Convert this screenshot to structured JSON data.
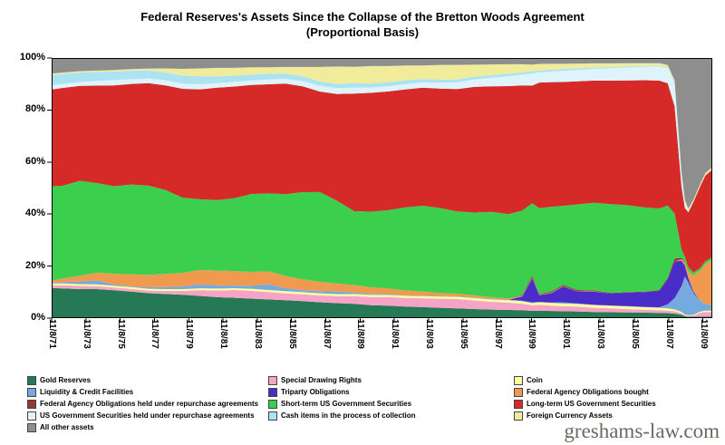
{
  "watermark": "greshams-law.com",
  "chart_data": {
    "type": "area",
    "stacked": true,
    "proportional": true,
    "title": "Federal Reserves's Assets Since the Collapse of the Bretton Woods Agreement (Proportional Basis)",
    "title_lines": [
      "Federal Reserves's Assets Since the Collapse of the Bretton Woods Agreement",
      "(Proportional Basis)"
    ],
    "xlabel": "",
    "ylabel": "",
    "grid": false,
    "ylim": [
      0,
      100
    ],
    "xlim": [
      1971.85,
      2010.4
    ],
    "y_ticks": [
      "0%",
      "20%",
      "40%",
      "60%",
      "80%",
      "100%"
    ],
    "y_tick_values": [
      0,
      20,
      40,
      60,
      80,
      100
    ],
    "x_tick_labels": [
      "11/8/71",
      "11/8/73",
      "11/8/75",
      "11/8/77",
      "11/8/79",
      "11/8/81",
      "11/8/83",
      "11/8/85",
      "11/8/87",
      "11/8/89",
      "11/8/91",
      "11/8/93",
      "11/8/95",
      "11/8/97",
      "11/8/99",
      "11/8/01",
      "11/8/03",
      "11/8/05",
      "11/8/07",
      "11/8/09"
    ],
    "x_tick_positions": [
      1971.85,
      1973.85,
      1975.85,
      1977.85,
      1979.85,
      1981.85,
      1983.85,
      1985.85,
      1987.85,
      1989.85,
      1991.85,
      1993.85,
      1995.85,
      1997.85,
      1999.85,
      2001.85,
      2003.85,
      2005.85,
      2007.85,
      2009.85
    ],
    "x": [
      1971.85,
      1972.5,
      1973.5,
      1974.5,
      1975.5,
      1976.5,
      1977.5,
      1978.5,
      1979.5,
      1980.5,
      1981.5,
      1982.5,
      1983.5,
      1984.5,
      1985.5,
      1986.5,
      1987.5,
      1988.5,
      1989.5,
      1990.5,
      1991.5,
      1992.5,
      1993.5,
      1994.5,
      1995.5,
      1996.5,
      1997.5,
      1998.5,
      1999.3,
      1999.9,
      2000.3,
      2001.0,
      2001.7,
      2002.5,
      2003.5,
      2004.5,
      2005.5,
      2006.5,
      2007.3,
      2007.8,
      2008.2,
      2008.6,
      2008.8,
      2009.0,
      2009.3,
      2009.7,
      2010.0,
      2010.4
    ],
    "series": [
      {
        "key": "gold_reserves",
        "label": "Gold Reserves",
        "color": "#257a55",
        "values": [
          11.5,
          11.2,
          11,
          11,
          10.5,
          10,
          9.5,
          9.2,
          9,
          8.5,
          8,
          7.8,
          7.5,
          7.2,
          6.8,
          6.4,
          6,
          5.6,
          5.2,
          4.8,
          4.6,
          4.3,
          4.1,
          3.9,
          3.7,
          3.4,
          3.2,
          3,
          2.9,
          2.7,
          2.8,
          2.7,
          2.6,
          2.5,
          2.3,
          2.2,
          2.1,
          2,
          1.9,
          1.8,
          1.6,
          1.2,
          0.7,
          0.5,
          0.5,
          0.5,
          0.5,
          0.5
        ]
      },
      {
        "key": "special_drawing_rights",
        "label": "Special Drawing Rights",
        "color": "#f5a3c7",
        "values": [
          1,
          1.2,
          1.2,
          1.1,
          1,
          1,
          1,
          1.2,
          1.5,
          2.2,
          2.6,
          3,
          3,
          2.8,
          2.6,
          2.6,
          2.6,
          2.6,
          2.8,
          3,
          3.2,
          3.2,
          3.3,
          3.4,
          3.5,
          3.2,
          2.9,
          2.7,
          2.4,
          2.1,
          2.2,
          2,
          1.9,
          1.8,
          1.6,
          1.4,
          1.2,
          1.1,
          1,
          0.9,
          0.8,
          0.5,
          0.3,
          0.3,
          0.4,
          1.5,
          1.8,
          1.8
        ]
      },
      {
        "key": "coin",
        "label": "Coin",
        "color": "#ffff9e",
        "values": [
          0.7,
          0.7,
          0.7,
          0.7,
          0.7,
          0.7,
          0.7,
          0.7,
          0.7,
          0.7,
          0.7,
          0.7,
          0.8,
          0.8,
          0.8,
          0.8,
          0.8,
          0.8,
          0.8,
          0.8,
          0.8,
          0.8,
          0.8,
          0.8,
          0.8,
          0.9,
          0.9,
          0.9,
          0.9,
          0.8,
          0.9,
          1,
          1,
          1,
          1,
          1,
          1,
          0.9,
          0.9,
          0.8,
          0.7,
          0.5,
          0.3,
          0.3,
          0.3,
          0.4,
          0.5,
          0.5
        ]
      },
      {
        "key": "liquidity_credit_facilities",
        "label": "Liquidity & Credit Facilities",
        "color": "#74aade",
        "values": [
          0.3,
          0.5,
          1,
          1.5,
          0.5,
          0.3,
          0.5,
          0.8,
          1,
          1.5,
          1.3,
          1,
          1.2,
          2.2,
          1.2,
          0.8,
          0.8,
          1,
          0.6,
          0.4,
          0.3,
          0.2,
          0.2,
          0.2,
          0.2,
          0.2,
          0.2,
          0.2,
          0.2,
          0.3,
          0.2,
          0.2,
          0.5,
          0.2,
          0.1,
          0.1,
          0.1,
          0.1,
          0.2,
          1.5,
          4,
          9,
          14,
          12,
          8,
          4,
          2.5,
          2
        ]
      },
      {
        "key": "triparty_obligations",
        "label": "Triparty Obligations",
        "color": "#4a2cc9",
        "values": [
          0,
          0,
          0,
          0,
          0,
          0,
          0,
          0,
          0,
          0,
          0,
          0,
          0,
          0,
          0,
          0,
          0,
          0,
          0,
          0,
          0,
          0,
          0,
          0,
          0,
          0,
          0,
          0,
          1.5,
          9,
          2.5,
          3.5,
          6,
          4.5,
          5,
          4.5,
          5,
          5.5,
          6,
          9,
          13,
          9,
          4,
          1.5,
          0.5,
          0,
          0,
          0
        ]
      },
      {
        "key": "federal_agency_obligations_bought",
        "label": "Federal Agency Obligations bought",
        "color": "#f09a4f",
        "values": [
          0.8,
          1.5,
          2.2,
          3,
          4,
          4.5,
          4.8,
          5,
          5.3,
          5.5,
          5.6,
          5.6,
          5.3,
          5,
          4.6,
          4,
          3.5,
          3,
          2.7,
          2.4,
          2.1,
          1.8,
          1.5,
          1.2,
          1,
          0.8,
          0.6,
          0.4,
          0.3,
          0.2,
          0.2,
          0.2,
          0.1,
          0.1,
          0.1,
          0,
          0,
          0,
          0,
          0,
          0,
          0.5,
          1,
          2.5,
          6,
          11,
          15,
          17
        ]
      },
      {
        "key": "federal_agency_obligations_repo",
        "label": "Federal Agency Obligations held under repurchase agreements",
        "color": "#943735",
        "values": [
          0,
          0,
          0,
          0,
          0,
          0,
          0,
          0,
          0,
          0,
          0,
          0,
          0,
          0,
          0,
          0,
          0,
          0,
          0,
          0,
          0,
          0,
          0,
          0,
          0,
          0,
          0,
          0,
          0.3,
          0.8,
          0.3,
          0.4,
          0.5,
          0.4,
          0.3,
          0.2,
          0.2,
          0.2,
          0.3,
          0.5,
          1,
          0.5,
          0.2,
          0,
          0,
          0,
          0,
          0
        ]
      },
      {
        "key": "short_term_us_govt_securities",
        "label": "Short-term US Government Securities",
        "color": "#3ccf4e",
        "values": [
          36,
          35,
          36,
          34,
          33,
          34,
          34,
          32,
          29,
          27,
          27,
          28,
          30,
          30,
          31,
          33,
          34,
          31,
          27,
          28,
          29,
          31,
          32,
          32,
          31,
          31,
          32,
          31,
          31,
          27,
          32,
          32,
          30,
          32,
          33,
          33,
          32,
          31,
          30,
          26,
          16,
          3,
          2,
          1.5,
          1,
          1,
          1,
          1
        ]
      },
      {
        "key": "long_term_us_govt_securities",
        "label": "Long-term US Government Securities",
        "color": "#d62a28",
        "values": [
          37,
          37,
          36,
          37,
          38,
          38,
          39,
          40,
          42,
          42,
          43,
          43,
          42,
          42,
          42,
          40,
          38,
          40,
          43,
          44,
          44,
          44,
          44,
          45,
          46,
          47,
          47,
          47,
          46,
          44,
          47,
          47,
          47,
          46,
          46,
          46,
          46,
          47,
          47,
          44,
          38,
          22,
          18,
          20,
          26,
          30,
          32,
          33
        ]
      },
      {
        "key": "us_govt_securities_repo",
        "label": "US Government Securities held under repurchase agreements",
        "color": "#def3fb",
        "values": [
          1.5,
          1.5,
          1.5,
          1.8,
          2,
          1.8,
          1.8,
          2,
          2,
          2,
          1.8,
          1.8,
          1.8,
          1.8,
          1.8,
          2,
          2.2,
          2.2,
          2.2,
          2,
          2,
          2,
          2,
          2.2,
          2.5,
          2.8,
          3.2,
          3.6,
          4,
          4.5,
          3.8,
          4,
          4.2,
          4.2,
          4.4,
          4.6,
          4.8,
          5,
          5.2,
          5.5,
          8,
          4,
          2,
          0.5,
          0,
          0,
          0,
          0
        ]
      },
      {
        "key": "cash_items",
        "label": "Cash items in the process of collection",
        "color": "#abe3f2",
        "values": [
          4,
          3.8,
          3.6,
          3.4,
          3.2,
          3.2,
          3,
          3,
          3.2,
          3,
          2.6,
          2.4,
          2.2,
          2.2,
          2,
          1.8,
          1.6,
          1.6,
          1.6,
          1.4,
          1.4,
          1.4,
          1.3,
          1.2,
          1.1,
          1,
          1,
          0.9,
          0.8,
          0.8,
          0.7,
          0.7,
          0.7,
          0.6,
          0.5,
          0.4,
          0.4,
          0.3,
          0.3,
          0.3,
          0.3,
          0.2,
          0.1,
          0.1,
          0.1,
          0.1,
          0.1,
          0.1
        ]
      },
      {
        "key": "foreign_currency_assets",
        "label": "Foreign Currency Assets",
        "color": "#f0ec9c",
        "values": [
          0.5,
          0.5,
          0.5,
          0.5,
          0.6,
          0.6,
          0.8,
          1.5,
          2.5,
          3,
          3.2,
          3,
          2.8,
          2.5,
          2.5,
          3.5,
          5.5,
          6.5,
          6,
          6.5,
          6,
          5.5,
          5,
          5.5,
          5.5,
          4.5,
          4,
          3.5,
          3,
          2.5,
          2.5,
          2.2,
          2,
          1.8,
          1.6,
          1.4,
          1.2,
          1,
          0.9,
          0.8,
          0.8,
          1,
          0.8,
          0.7,
          0.7,
          0.8,
          0.8,
          0.8
        ]
      },
      {
        "key": "all_other_assets",
        "label": "All other assets",
        "color": "#8e8e8e",
        "values": [
          6,
          5.5,
          5,
          4.8,
          4.5,
          4.2,
          4,
          4,
          4.2,
          4,
          3.8,
          3.8,
          3.6,
          3.6,
          3.4,
          3.4,
          3.4,
          3.2,
          3.2,
          3,
          3,
          2.8,
          2.8,
          2.6,
          2.6,
          2.5,
          2.4,
          2.3,
          2.3,
          2.5,
          2.2,
          2.2,
          2.2,
          2.1,
          2,
          2,
          1.9,
          1.9,
          1.9,
          2.5,
          8,
          40,
          52,
          55,
          52,
          46,
          43,
          41
        ]
      }
    ],
    "legend": {
      "position": "bottom",
      "columns": 3,
      "order": [
        "gold_reserves",
        "special_drawing_rights",
        "coin",
        "liquidity_credit_facilities",
        "triparty_obligations",
        "federal_agency_obligations_bought",
        "federal_agency_obligations_repo",
        "short_term_us_govt_securities",
        "long_term_us_govt_securities",
        "us_govt_securities_repo",
        "cash_items",
        "foreign_currency_assets",
        "all_other_assets"
      ]
    }
  }
}
